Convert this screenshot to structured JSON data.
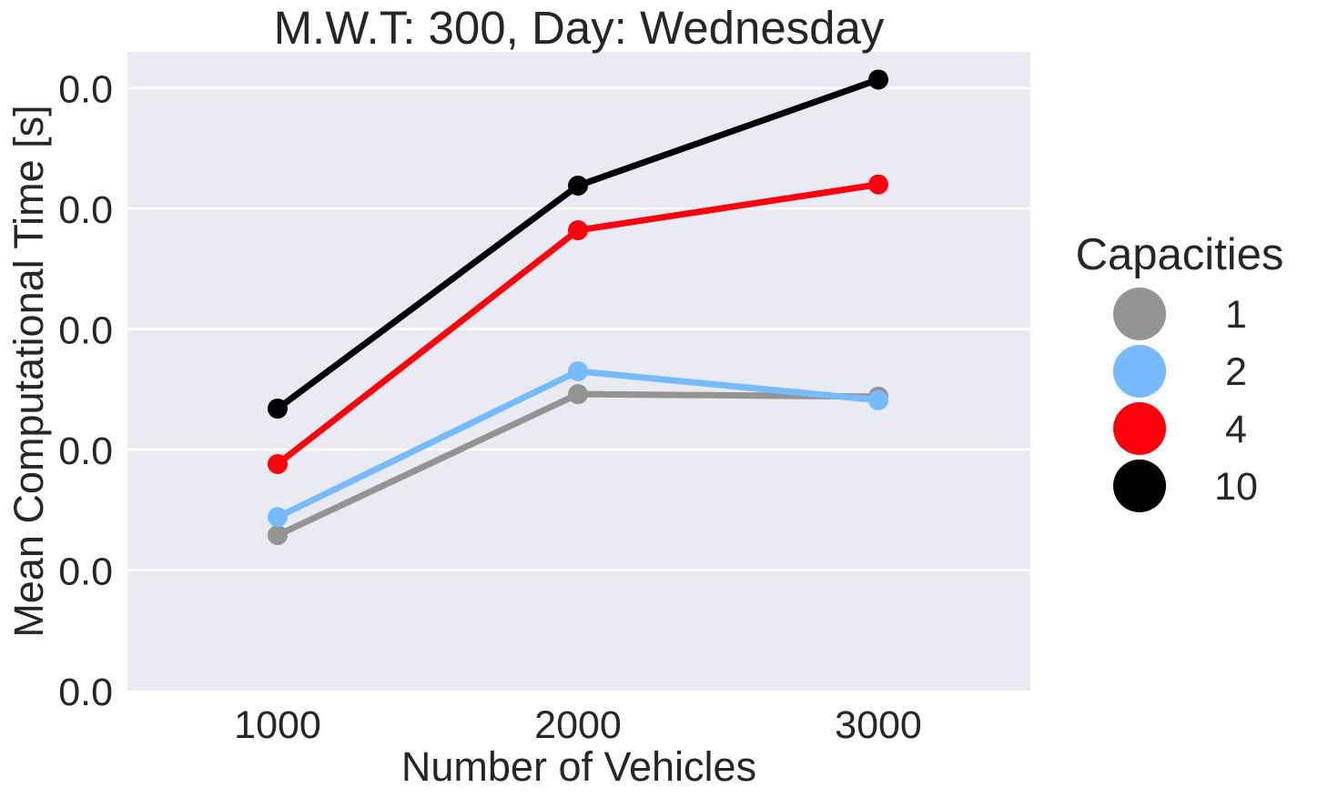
{
  "chart_data": {
    "type": "line",
    "title": "M.W.T: 300, Day: Wednesday",
    "xlabel": "Number of Vehicles",
    "ylabel": "Mean Computational Time [s]",
    "categories": [
      "1000",
      "2000",
      "3000"
    ],
    "y_tick_labels": [
      "0.0",
      "0.0",
      "0.0",
      "0.0",
      "0.0",
      "0.0"
    ],
    "ylim": [
      0,
      5.3
    ],
    "grid": true,
    "background": "#eaeaf2",
    "legend": {
      "title": "Capacities",
      "placement": "right"
    },
    "series": [
      {
        "name": "1",
        "color": "#929591",
        "values": [
          1.29,
          2.46,
          2.44
        ]
      },
      {
        "name": "2",
        "color": "#75bbfd",
        "values": [
          1.44,
          2.65,
          2.41
        ]
      },
      {
        "name": "4",
        "color": "#ff000d",
        "values": [
          1.88,
          3.82,
          4.2
        ]
      },
      {
        "name": "10",
        "color": "#000000",
        "values": [
          2.34,
          4.19,
          5.07
        ]
      }
    ]
  }
}
